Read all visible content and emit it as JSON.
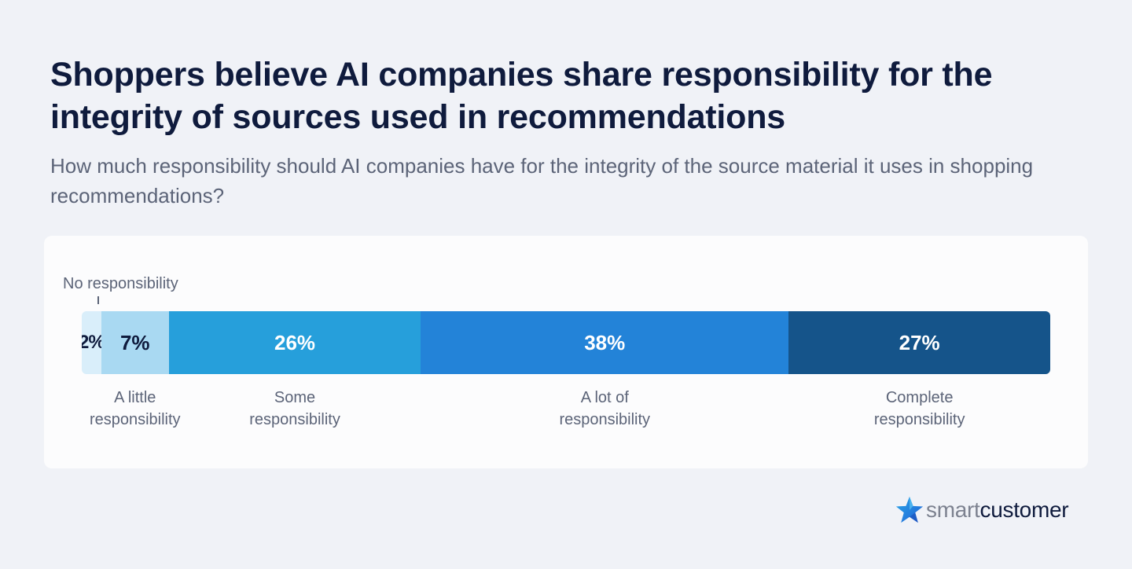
{
  "title": "Shoppers believe AI companies share responsibility for the integrity of sources used in recommendations",
  "subtitle": "How much responsibility should AI companies have for the integrity of the source material it uses in shopping recommendations?",
  "brand": {
    "smart": "smart",
    "customer": "customer"
  },
  "chart_data": {
    "type": "bar",
    "orientation": "horizontal-stacked-100",
    "categories": [
      "No responsibility",
      "A little\nresponsibility",
      "Some\nresponsibility",
      "A lot of\nresponsibility",
      "Complete\nresponsibility"
    ],
    "values": [
      2,
      7,
      26,
      38,
      27
    ],
    "value_labels": [
      "2%",
      "7%",
      "26%",
      "38%",
      "27%"
    ],
    "colors": [
      "#d9eefa",
      "#a9d9f2",
      "#269fdb",
      "#2383d8",
      "#15548a"
    ],
    "label_colors": [
      "#0f1b3d",
      "#0f1b3d",
      "#ffffff",
      "#ffffff",
      "#ffffff"
    ]
  }
}
